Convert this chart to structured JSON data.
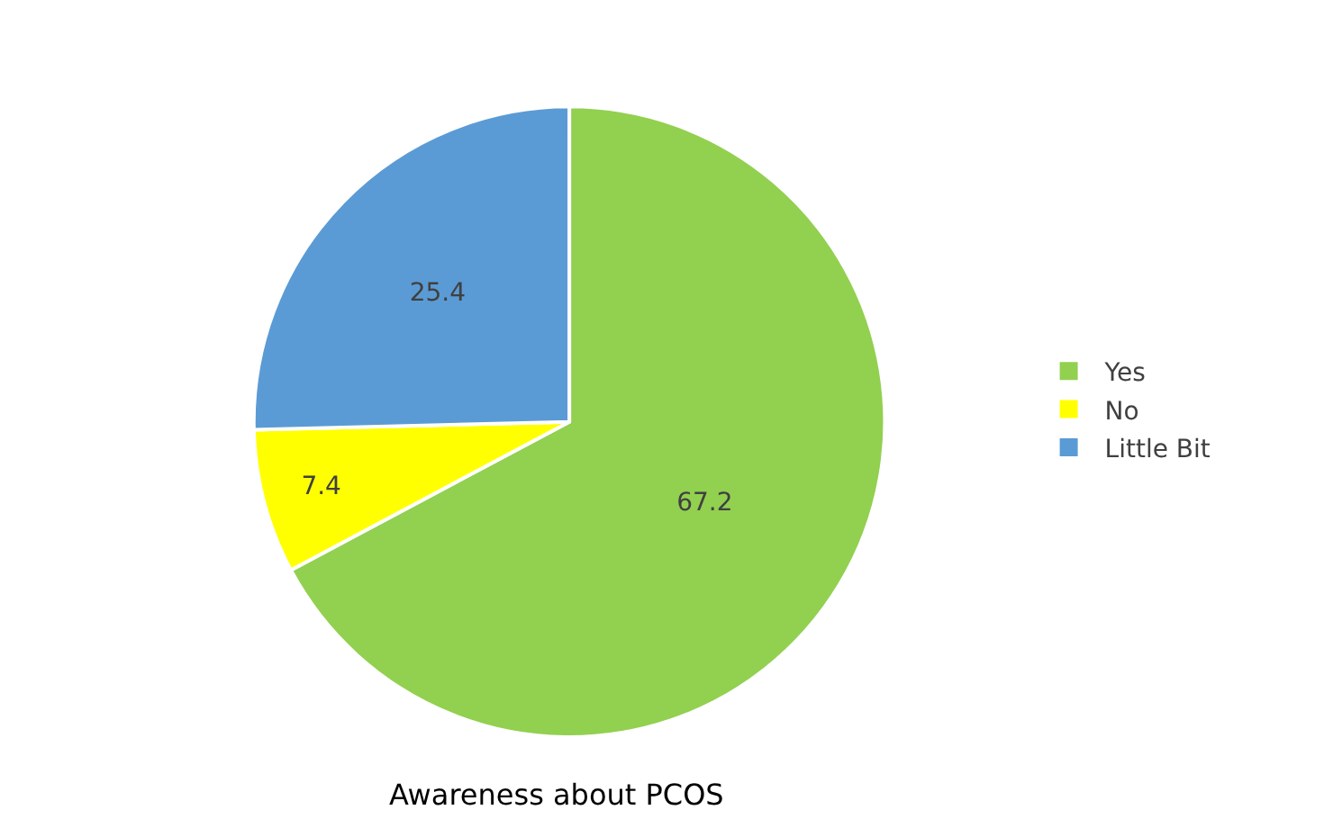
{
  "chart_data": {
    "type": "pie",
    "title": "Awareness about PCOS",
    "categories": [
      "Yes",
      "No",
      "Little Bit"
    ],
    "values": [
      67.2,
      7.4,
      25.4
    ],
    "colors": [
      "#92d050",
      "#ffff00",
      "#5b9bd5"
    ],
    "data_labels": true,
    "legend": "right"
  }
}
